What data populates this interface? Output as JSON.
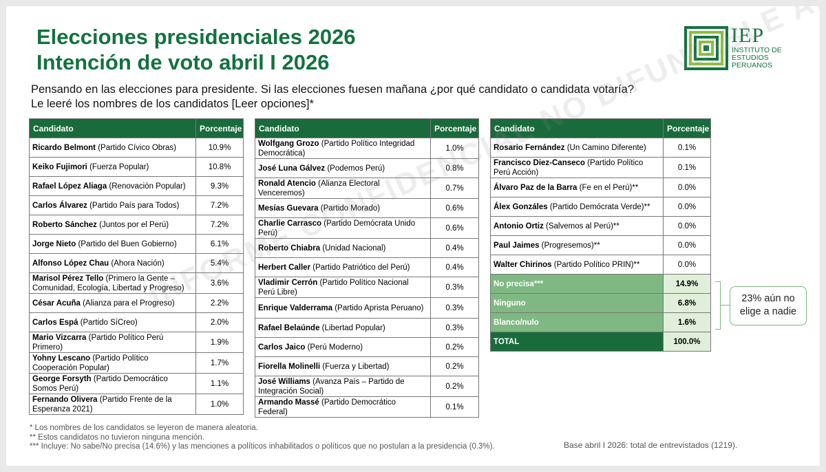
{
  "title": {
    "line1": "Elecciones presidenciales 2026",
    "line2": "Intención de voto abril I 2026"
  },
  "question": {
    "line1": "Pensando en las elecciones para presidente. Si las elecciones fuesen mañana ¿por qué candidato o candidata votaría?",
    "line2": "Le leeré los nombres de los candidatos [Leer opciones]*"
  },
  "logo": {
    "initials": "IEP",
    "line1": "INSTITUTO DE",
    "line2": "ESTUDIOS",
    "line3": "PERUANOS"
  },
  "headers": {
    "candidate": "Candidato",
    "percentage": "Porcentaje"
  },
  "table1": [
    {
      "name": "Ricardo Belmont",
      "party": " (Partido Cívico Obras)",
      "pct": "10.9%"
    },
    {
      "name": "Keiko Fujimori",
      "party": " (Fuerza Popular)",
      "pct": "10.8%"
    },
    {
      "name": "Rafael López Aliaga",
      "party": " (Renovación Popular)",
      "pct": "9.3%"
    },
    {
      "name": "Carlos Álvarez",
      "party": " (Partido País para Todos)",
      "pct": "7.2%"
    },
    {
      "name": "Roberto Sánchez",
      "party": " (Juntos por el Perú)",
      "pct": "7.2%"
    },
    {
      "name": "Jorge Nieto",
      "party": " (Partido del Buen Gobierno)",
      "pct": "6.1%"
    },
    {
      "name": "Alfonso López Chau",
      "party": " (Ahora Nación)",
      "pct": "5.4%"
    },
    {
      "name": "Marisol Pérez Tello",
      "party": " (Primero la Gente – Comunidad, Ecología, Libertad y Progreso)",
      "pct": "3.6%"
    },
    {
      "name": "César Acuña",
      "party": " (Alianza para el Progreso)",
      "pct": "2.2%"
    },
    {
      "name": "Carlos Espá",
      "party": " (Partido SíCreo)",
      "pct": "2.0%"
    },
    {
      "name": "Mario Vizcarra",
      "party": " (Partido Político Perú Primero)",
      "pct": "1.9%"
    },
    {
      "name": "Yohny Lescano",
      "party": " (Partido Político Cooperación Popular)",
      "pct": "1.7%"
    },
    {
      "name": "George Forsyth",
      "party": " (Partido Democrático Somos Perú)",
      "pct": "1.1%"
    },
    {
      "name": "Fernando Olivera",
      "party": " (Partido Frente de la Esperanza 2021)",
      "pct": "1.0%"
    }
  ],
  "table2": [
    {
      "name": "Wolfgang Grozo",
      "party": " (Partido Político Integridad Democrática)",
      "pct": "1.0%"
    },
    {
      "name": "José Luna Gálvez",
      "party": " (Podemos Perú)",
      "pct": "0.8%"
    },
    {
      "name": "Ronald Atencio",
      "party": " (Alianza Electoral Venceremos)",
      "pct": "0.7%"
    },
    {
      "name": "Mesías Guevara",
      "party": " (Partido Morado)",
      "pct": "0.6%"
    },
    {
      "name": "Charlie Carrasco",
      "party": " (Partido Demócrata Unido Perú)",
      "pct": "0.6%"
    },
    {
      "name": "Roberto Chiabra",
      "party": " (Unidad Nacional)",
      "pct": "0.4%"
    },
    {
      "name": "Herbert Caller",
      "party": " (Partido Patriótico del Perú)",
      "pct": "0.4%"
    },
    {
      "name": "Vladimir Cerrón",
      "party": " (Partido Político Nacional Perú Libre)",
      "pct": "0.3%"
    },
    {
      "name": "Enrique Valderrama",
      "party": " (Partido Aprista Peruano)",
      "pct": "0.3%"
    },
    {
      "name": "Rafael Belaúnde",
      "party": " (Libertad Popular)",
      "pct": "0.3%"
    },
    {
      "name": "Carlos Jaico",
      "party": " (Perú Moderno)",
      "pct": "0.2%"
    },
    {
      "name": "Fiorella Molinelli",
      "party": " (Fuerza y Libertad)",
      "pct": "0.2%"
    },
    {
      "name": "José Williams",
      "party": " (Avanza País – Partido de Integración Social)",
      "pct": "0.2%"
    },
    {
      "name": "Armando Massé",
      "party": " (Partido Democrático Federal)",
      "pct": "0.1%"
    }
  ],
  "table3": [
    {
      "name": "Rosario Fernández",
      "party": " (Un Camino Diferente)",
      "pct": "0.1%"
    },
    {
      "name": "Francisco Diez-Canseco",
      "party": " (Partido Político Perú Acción)",
      "pct": "0.1%"
    },
    {
      "name": "Álvaro Paz de la Barra",
      "party": " (Fe en el Perú)**",
      "pct": "0.0%"
    },
    {
      "name": "Álex Gonzáles",
      "party": " (Partido Demócrata Verde)**",
      "pct": "0.0%"
    },
    {
      "name": "Antonio Ortiz",
      "party": " (Salvemos al Perú)**",
      "pct": "0.0%"
    },
    {
      "name": "Paul Jaimes",
      "party": " (Progresemos)**",
      "pct": "0.0%"
    },
    {
      "name": "Walter Chirinos",
      "party": " (Partido Político PRIN)**",
      "pct": "0.0%"
    }
  ],
  "summary": [
    {
      "label": "No precisa***",
      "pct": "14.9%"
    },
    {
      "label": "Ninguno",
      "pct": "6.8%"
    },
    {
      "label": "Blanco/nulo",
      "pct": "1.6%"
    }
  ],
  "total": {
    "label": "TOTAL",
    "pct": "100.0%"
  },
  "callout": {
    "line1": "23% aún no",
    "line2": "elige a nadie"
  },
  "notes": [
    "* Los nombres de los candidatos se leyeron de manera aleatoria.",
    "** Estos candidatos no tuvieron ninguna mención.",
    "*** Incluye: No sabe/No precisa (14.6%) y las menciones a políticos inhabilitados o políticos que no postulan a la presidencia (0.3%)."
  ],
  "base": "Base abril I 2026: total de entrevistados (1219).",
  "watermark": "INFORME CONFIDENCIAL NO DIFUNDIBLE AL PÚBLICO",
  "colors": {
    "brand_green": "#13723f",
    "header_green": "#1a6b3c",
    "summary_green": "#7fb882",
    "pct_cell": "#e0efd9"
  }
}
